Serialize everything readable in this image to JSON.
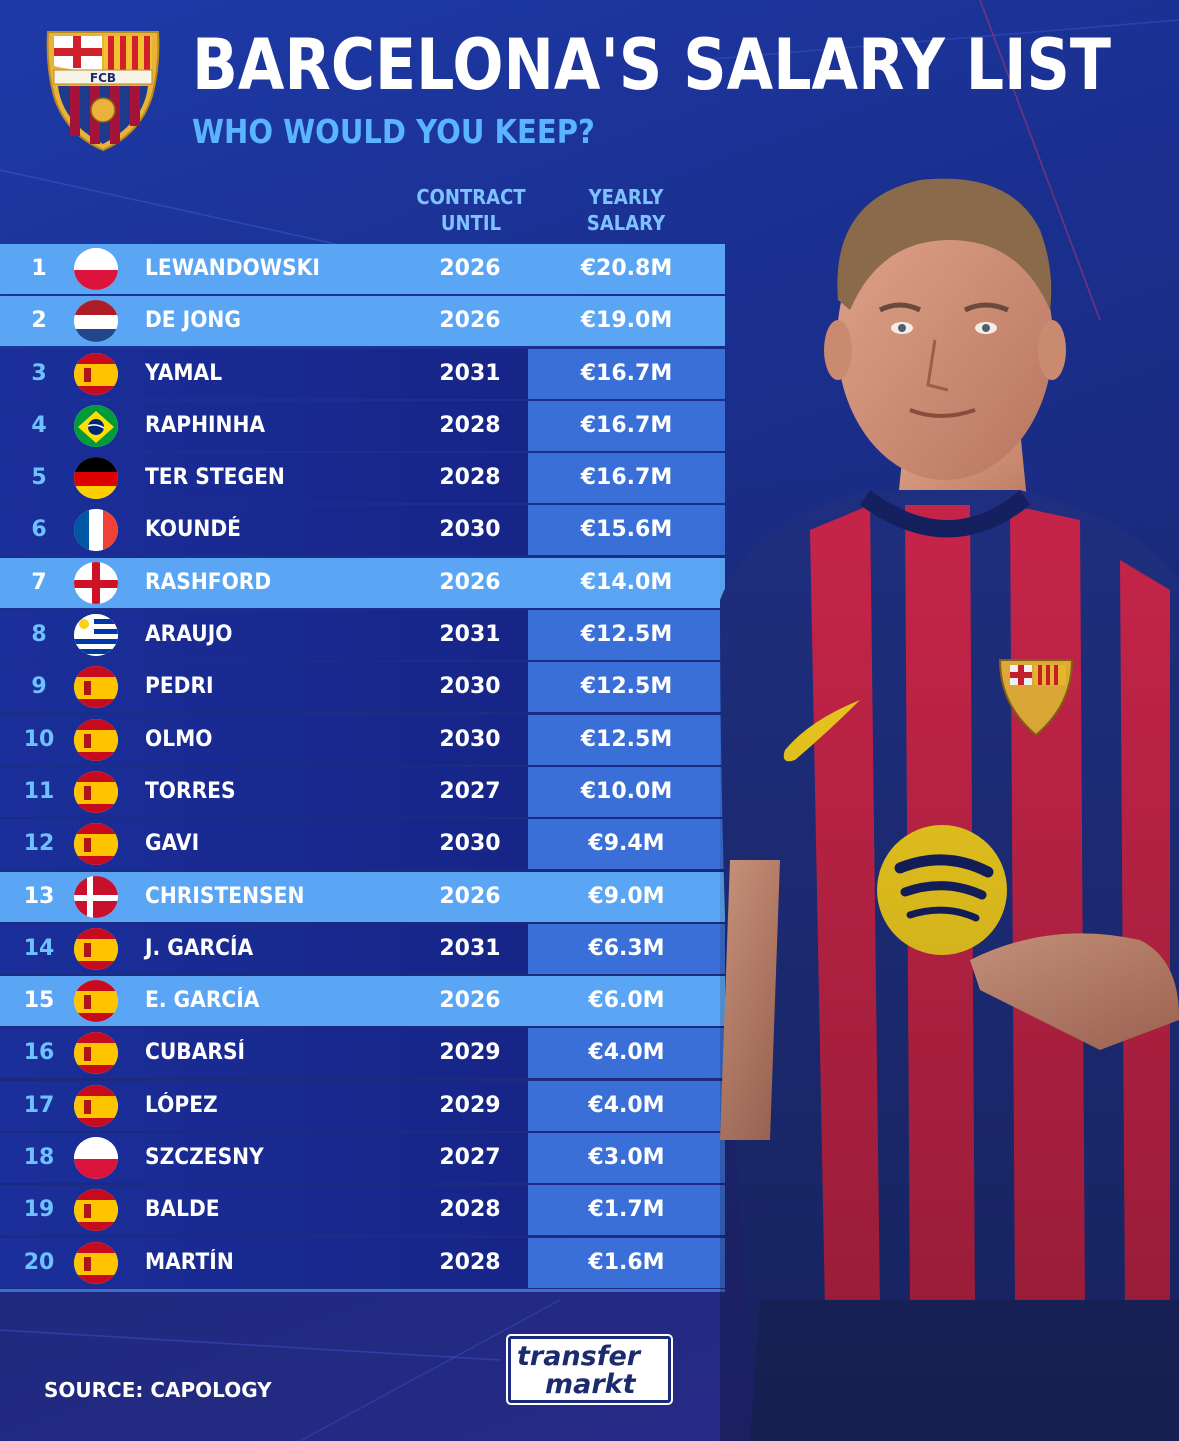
{
  "header": {
    "title": "BARCELONA'S SALARY LIST",
    "subtitle": "WHO WOULD YOU KEEP?",
    "crest_icon": "fc-barcelona-crest",
    "crest_text": "FCB"
  },
  "columns": {
    "contract_line1": "CONTRACT",
    "contract_line2": "UNTIL",
    "salary_line1": "YEARLY",
    "salary_line2": "SALARY"
  },
  "colors": {
    "highlight_row": "#5aa6f5",
    "salary_cell": "#3a6fd8",
    "subtitle": "#5ab4ff"
  },
  "players": [
    {
      "rank": "1",
      "flag": "poland",
      "name": "LEWANDOWSKI",
      "contract": "2026",
      "salary": "€20.8M",
      "highlight": true
    },
    {
      "rank": "2",
      "flag": "netherlands",
      "name": "DE JONG",
      "contract": "2026",
      "salary": "€19.0M",
      "highlight": true
    },
    {
      "rank": "3",
      "flag": "spain",
      "name": "YAMAL",
      "contract": "2031",
      "salary": "€16.7M",
      "highlight": false
    },
    {
      "rank": "4",
      "flag": "brazil",
      "name": "RAPHINHA",
      "contract": "2028",
      "salary": "€16.7M",
      "highlight": false
    },
    {
      "rank": "5",
      "flag": "germany",
      "name": "TER STEGEN",
      "contract": "2028",
      "salary": "€16.7M",
      "highlight": false
    },
    {
      "rank": "6",
      "flag": "france",
      "name": "KOUNDÉ",
      "contract": "2030",
      "salary": "€15.6M",
      "highlight": false
    },
    {
      "rank": "7",
      "flag": "england",
      "name": "RASHFORD",
      "contract": "2026",
      "salary": "€14.0M",
      "highlight": true
    },
    {
      "rank": "8",
      "flag": "uruguay",
      "name": "ARAUJO",
      "contract": "2031",
      "salary": "€12.5M",
      "highlight": false
    },
    {
      "rank": "9",
      "flag": "spain",
      "name": "PEDRI",
      "contract": "2030",
      "salary": "€12.5M",
      "highlight": false
    },
    {
      "rank": "10",
      "flag": "spain",
      "name": "OLMO",
      "contract": "2030",
      "salary": "€12.5M",
      "highlight": false
    },
    {
      "rank": "11",
      "flag": "spain",
      "name": "TORRES",
      "contract": "2027",
      "salary": "€10.0M",
      "highlight": false
    },
    {
      "rank": "12",
      "flag": "spain",
      "name": "GAVI",
      "contract": "2030",
      "salary": "€9.4M",
      "highlight": false
    },
    {
      "rank": "13",
      "flag": "denmark",
      "name": "CHRISTENSEN",
      "contract": "2026",
      "salary": "€9.0M",
      "highlight": true
    },
    {
      "rank": "14",
      "flag": "spain",
      "name": "J. GARCÍA",
      "contract": "2031",
      "salary": "€6.3M",
      "highlight": false
    },
    {
      "rank": "15",
      "flag": "spain",
      "name": "E. GARCÍA",
      "contract": "2026",
      "salary": "€6.0M",
      "highlight": true
    },
    {
      "rank": "16",
      "flag": "spain",
      "name": "CUBARSÍ",
      "contract": "2029",
      "salary": "€4.0M",
      "highlight": false
    },
    {
      "rank": "17",
      "flag": "spain",
      "name": "LÓPEZ",
      "contract": "2029",
      "salary": "€4.0M",
      "highlight": false
    },
    {
      "rank": "18",
      "flag": "poland",
      "name": "SZCZESNY",
      "contract": "2027",
      "salary": "€3.0M",
      "highlight": false
    },
    {
      "rank": "19",
      "flag": "spain",
      "name": "BALDE",
      "contract": "2028",
      "salary": "€1.7M",
      "highlight": false
    },
    {
      "rank": "20",
      "flag": "spain",
      "name": "MARTÍN",
      "contract": "2028",
      "salary": "€1.6M",
      "highlight": false
    }
  ],
  "footer": {
    "source": "SOURCE: CAPOLOGY",
    "logo_line1": "transfer",
    "logo_line2": "markt"
  },
  "player_image": {
    "icon": "player-in-barcelona-kit",
    "kit_primary": "#c8254a",
    "kit_secondary": "#1f2f80",
    "sponsor_icon": "spotify-icon"
  }
}
